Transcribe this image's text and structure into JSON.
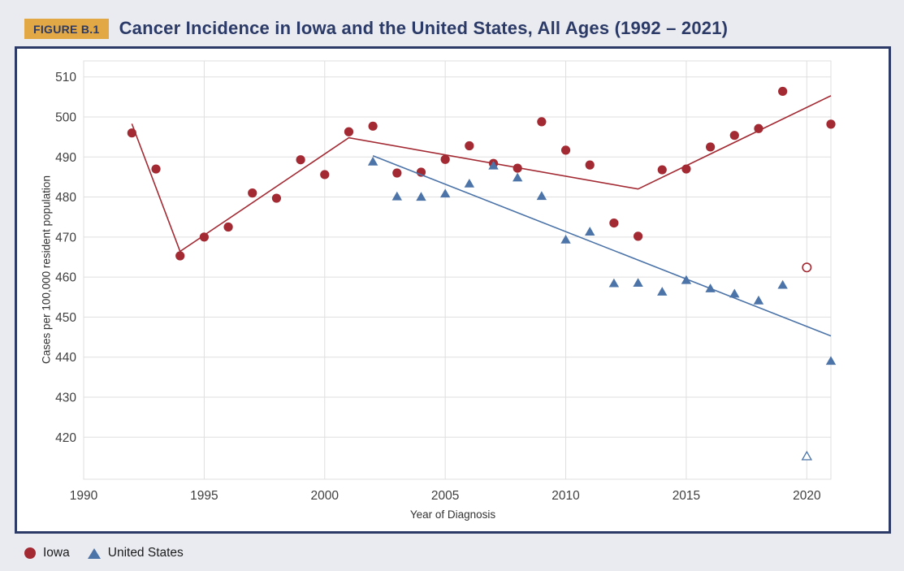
{
  "header": {
    "badge": "FIGURE B.1",
    "title": "Cancer Incidence in Iowa and the United States, All Ages (1992 – 2021)"
  },
  "legend": [
    {
      "label": "Iowa",
      "marker": "circle",
      "color": "#A32A33"
    },
    {
      "label": "United States",
      "marker": "triangle",
      "color": "#4C74A8"
    }
  ],
  "colors": {
    "accent_navy": "#2B3A66",
    "badge_gold": "#E2A845",
    "iowa_red": "#A32A33",
    "us_blue": "#4C74A8",
    "grid": "#DFDFDF",
    "tick_text": "#3F3F3F",
    "page_background": "#E9EBF1"
  },
  "chart_data": {
    "type": "scatter",
    "title": "Cancer Incidence in Iowa and the United States, All Ages (1992 – 2021)",
    "xlabel": "Year of Diagnosis",
    "ylabel": "Cases per 100,000 resident population",
    "xlim": [
      1990,
      2021
    ],
    "ylim": [
      409.5,
      514
    ],
    "x_ticks": [
      1990,
      1995,
      2000,
      2005,
      2010,
      2015,
      2020
    ],
    "y_ticks": [
      420,
      430,
      440,
      450,
      460,
      470,
      480,
      490,
      500,
      510
    ],
    "grid": true,
    "legend_position": "bottom-left",
    "note": "2020 values shown as open (hollow) markers",
    "series": [
      {
        "name": "Iowa",
        "marker": "circle",
        "color": "#A32A33",
        "points": [
          [
            1992,
            496.0
          ],
          [
            1993,
            487.0
          ],
          [
            1994,
            465.3
          ],
          [
            1995,
            470.0
          ],
          [
            1996,
            472.5
          ],
          [
            1997,
            481.0
          ],
          [
            1998,
            479.7
          ],
          [
            1999,
            489.3
          ],
          [
            2000,
            485.6
          ],
          [
            2001,
            496.3
          ],
          [
            2002,
            497.7
          ],
          [
            2003,
            486.0
          ],
          [
            2004,
            486.2
          ],
          [
            2005,
            489.4
          ],
          [
            2006,
            492.8
          ],
          [
            2007,
            488.4
          ],
          [
            2008,
            487.2
          ],
          [
            2009,
            498.8
          ],
          [
            2010,
            491.7
          ],
          [
            2011,
            488.0
          ],
          [
            2012,
            473.5
          ],
          [
            2013,
            470.2
          ],
          [
            2014,
            486.8
          ],
          [
            2015,
            487.0
          ],
          [
            2016,
            492.5
          ],
          [
            2017,
            495.4
          ],
          [
            2018,
            497.1
          ],
          [
            2019,
            506.4
          ],
          [
            2021,
            498.2
          ]
        ],
        "open_points": [
          [
            2020,
            462.4
          ]
        ],
        "trend": [
          [
            1992,
            498.3
          ],
          [
            1994,
            466.4
          ],
          [
            2001,
            494.8
          ],
          [
            2013,
            482.0
          ],
          [
            2021,
            505.3
          ]
        ]
      },
      {
        "name": "United States",
        "marker": "triangle",
        "color": "#4C74A8",
        "points": [
          [
            2002,
            488.9
          ],
          [
            2003,
            480.2
          ],
          [
            2004,
            480.1
          ],
          [
            2005,
            480.9
          ],
          [
            2006,
            483.4
          ],
          [
            2007,
            487.9
          ],
          [
            2008,
            484.9
          ],
          [
            2009,
            480.3
          ],
          [
            2010,
            469.4
          ],
          [
            2011,
            471.4
          ],
          [
            2012,
            458.5
          ],
          [
            2013,
            458.6
          ],
          [
            2014,
            456.4
          ],
          [
            2015,
            459.3
          ],
          [
            2016,
            457.2
          ],
          [
            2017,
            455.9
          ],
          [
            2018,
            454.2
          ],
          [
            2019,
            458.1
          ],
          [
            2021,
            439.1
          ]
        ],
        "open_points": [
          [
            2020,
            415.3
          ]
        ],
        "trend": [
          [
            2002,
            490.3
          ],
          [
            2021,
            445.3
          ]
        ]
      }
    ]
  }
}
